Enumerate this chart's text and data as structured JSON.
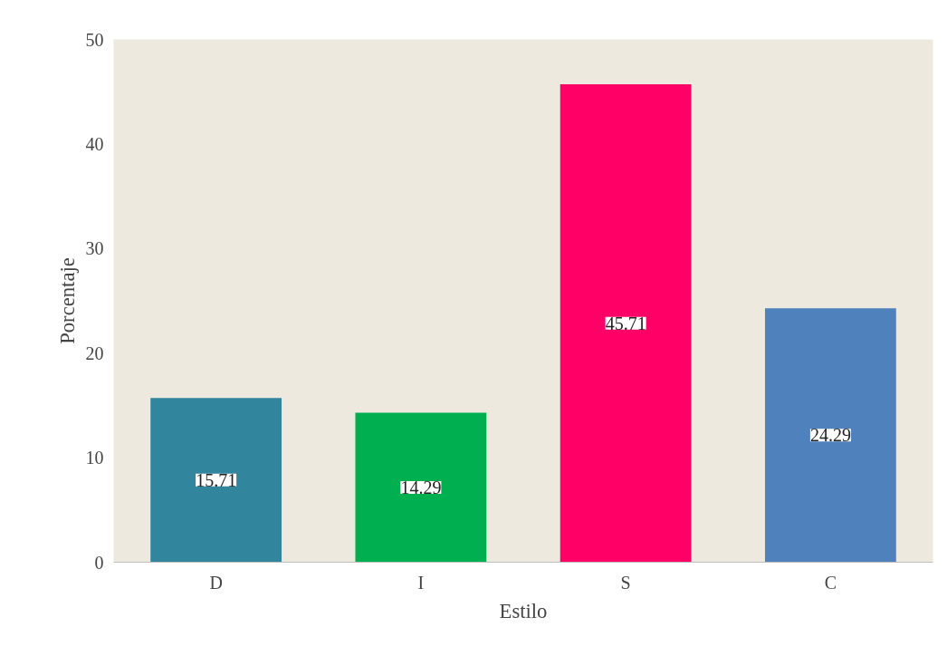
{
  "chart_data": {
    "type": "bar",
    "xlabel": "Estilo",
    "ylabel": "Porcentaje",
    "categories": [
      "D",
      "I",
      "S",
      "C"
    ],
    "values": [
      15.71,
      14.29,
      45.71,
      24.29
    ],
    "colors": [
      "#31859c",
      "#00b050",
      "#ff0066",
      "#4f81bd"
    ],
    "ylim": [
      0,
      50
    ],
    "yticks": [
      0,
      10,
      20,
      30,
      40,
      50
    ],
    "grid": false,
    "data_labels": true
  }
}
